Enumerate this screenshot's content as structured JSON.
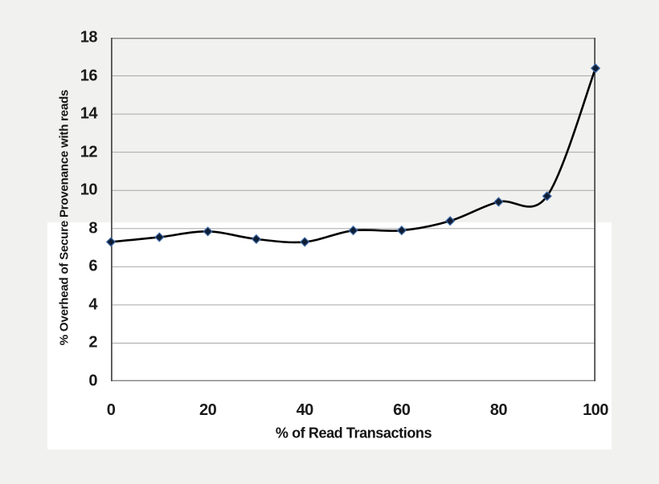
{
  "page": {
    "background_color": "#f1f1ef",
    "panel_color": "#ffffff"
  },
  "chart_data": {
    "type": "line",
    "title": "",
    "xlabel": "% of Read Transactions",
    "ylabel": "% Overhead of Secure Provenance  with reads",
    "x": [
      0,
      10,
      20,
      30,
      40,
      50,
      60,
      70,
      80,
      90,
      100
    ],
    "y": [
      7.3,
      7.55,
      7.85,
      7.45,
      7.3,
      7.9,
      7.9,
      8.4,
      9.4,
      9.7,
      16.4
    ],
    "xlim": [
      0,
      100
    ],
    "ylim": [
      0,
      18
    ],
    "x_ticks": [
      0,
      20,
      40,
      60,
      80,
      100
    ],
    "y_ticks": [
      0,
      2,
      4,
      6,
      8,
      10,
      12,
      14,
      16,
      18
    ],
    "grid": "horizontal",
    "legend": "none",
    "smooth": true,
    "line_color": "#000000",
    "marker_shape": "diamond",
    "marker_fill": "#0f1e35",
    "marker_stroke": "#3f6aa8",
    "gridline_color": "#a8a8a8",
    "border_color": "#8a8a8a",
    "axis_color": "#4f4f4f",
    "tick_label_color": "#1b1b1b"
  }
}
